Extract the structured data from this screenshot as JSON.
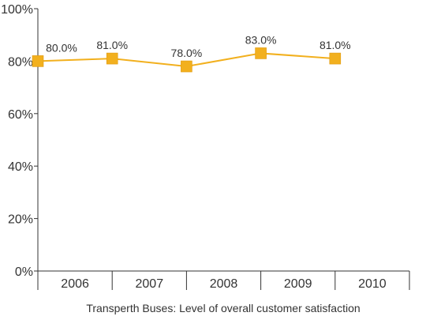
{
  "chart_data": {
    "type": "line",
    "categories": [
      "2006",
      "2007",
      "2008",
      "2009",
      "2010"
    ],
    "series": [
      {
        "values": [
          80.0,
          81.0,
          78.0,
          83.0,
          81.0
        ],
        "data_labels": [
          "80.0%",
          "81.0%",
          "78.0%",
          "83.0%",
          "81.0%"
        ],
        "color": "#F2B01E",
        "marker": "square"
      }
    ],
    "ylim": [
      0,
      100
    ],
    "yticks": [
      0,
      20,
      40,
      60,
      80,
      100
    ],
    "ytick_labels": [
      "0%",
      "20%",
      "40%",
      "60%",
      "80%",
      "100%"
    ],
    "caption": "Transperth Buses: Level of overall customer satisfaction",
    "grid": false,
    "axis_color": "#333333"
  }
}
